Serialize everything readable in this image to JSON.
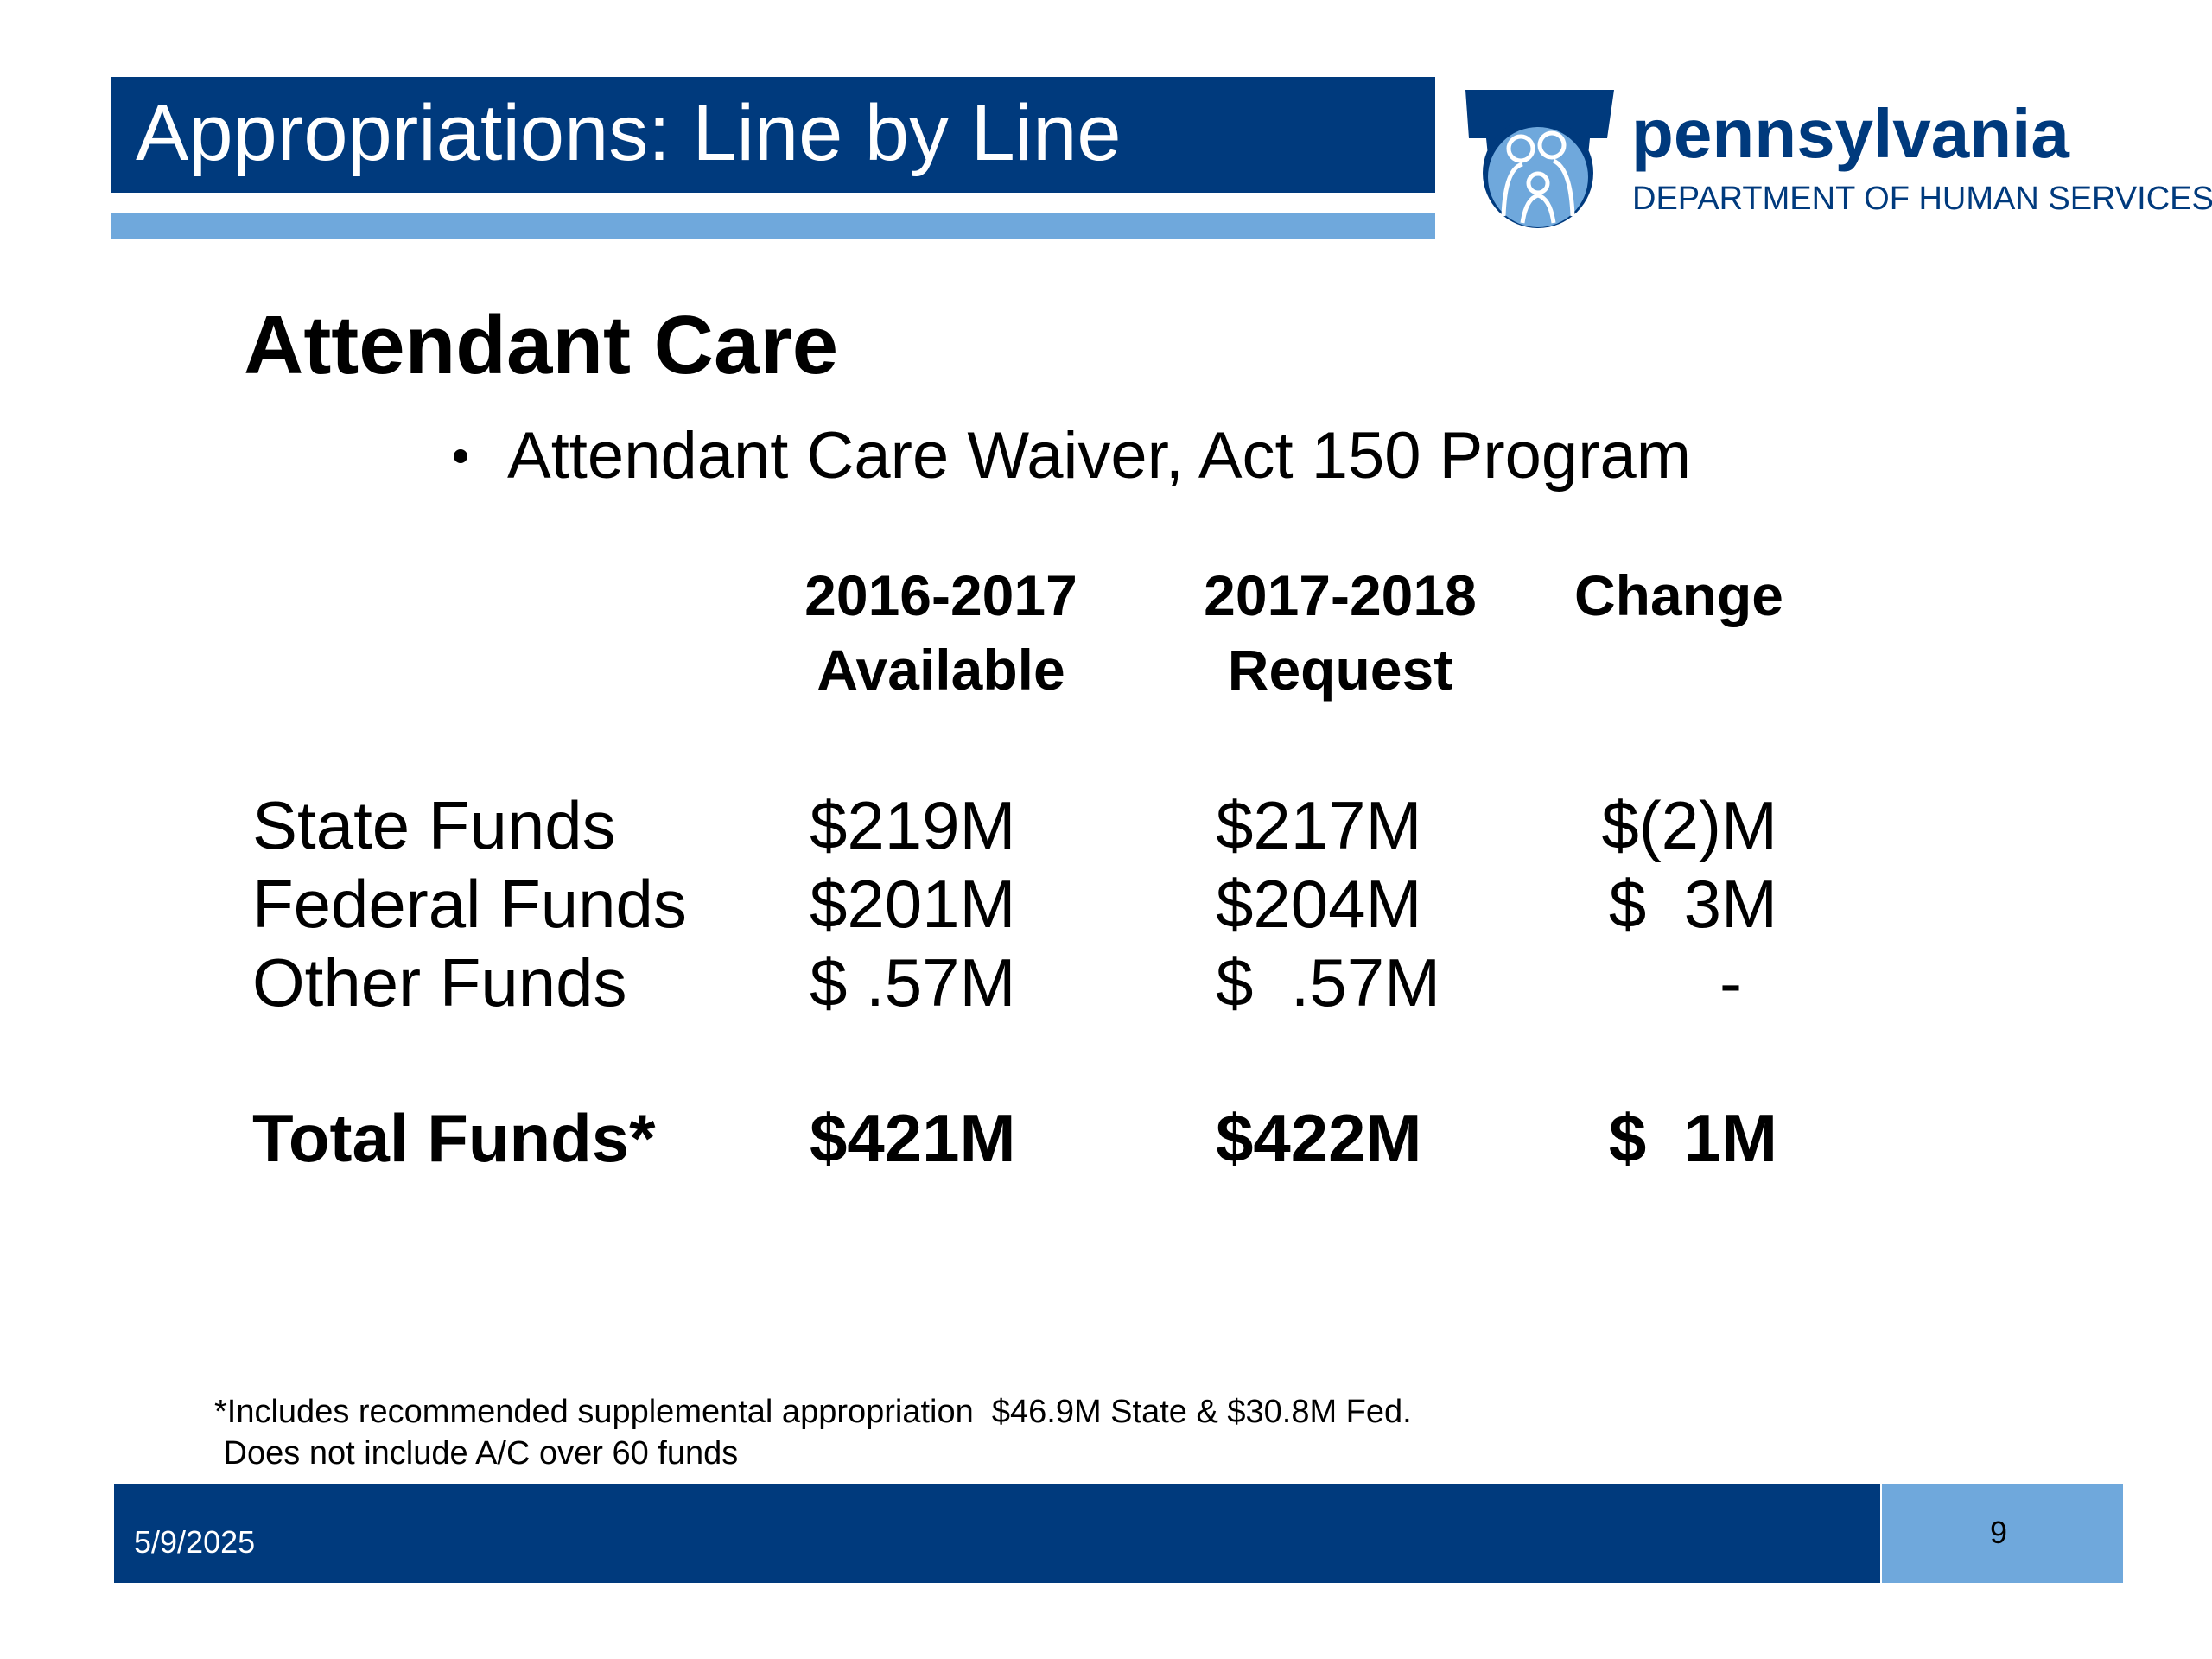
{
  "header": {
    "title": "Appropriations: Line by Line",
    "logo": {
      "name": "pennsylvania",
      "department": "DEPARTMENT OF HUMAN SERVICES"
    }
  },
  "heading": "Attendant Care",
  "bullets": [
    "Attendant Care Waiver, Act 150 Program"
  ],
  "table": {
    "columns": [
      [
        "2016-2017",
        "Available"
      ],
      [
        "2017-2018",
        "Request"
      ],
      [
        "Change"
      ]
    ],
    "rows": [
      [
        "State Funds",
        "$219M",
        "$217M",
        "$(2)M"
      ],
      [
        "Federal Funds",
        "$201M",
        "$204M",
        "$  3M"
      ],
      [
        "Other Funds",
        "$ .57M",
        "$  .57M",
        "-"
      ]
    ],
    "total": [
      "Total Funds*",
      "$421M",
      "$422M",
      "$  1M"
    ]
  },
  "footnote": [
    "*Includes recommended supplemental appropriation  $46.9M State & $30.8M Fed.",
    " Does not include A/C over 60 funds"
  ],
  "footer": {
    "date": "5/9/2025",
    "page": "9"
  }
}
